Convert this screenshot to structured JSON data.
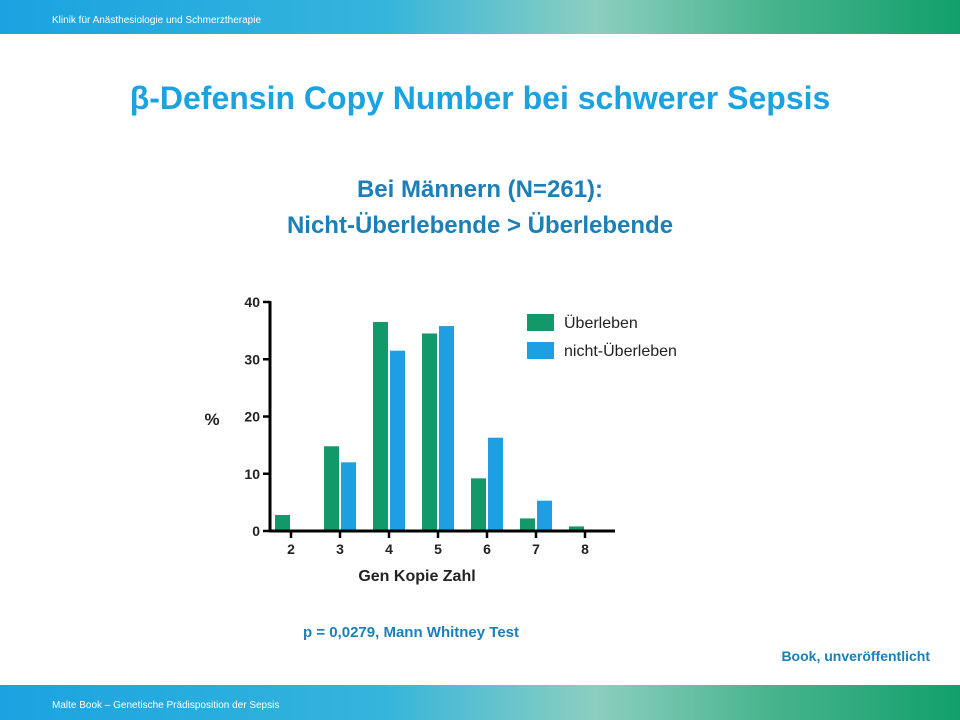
{
  "header": {
    "text": "Klinik für  Anästhesiologie und Schmerztherapie"
  },
  "footer": {
    "text": "Malte Book – Genetische Prädisposition der Sepsis"
  },
  "slide": {
    "title_symbol": "β",
    "title": "-Defensin Copy Number bei schwerer Sepsis",
    "subtitle_line1": "Bei Männern (N=261):",
    "subtitle_line2": "Nicht-Überlebende > Überlebende",
    "pvalue": "p = 0,0279, Mann Whitney Test",
    "source": "Book, unveröffentlicht"
  },
  "colors": {
    "accent": "#1aa3e0",
    "text_blue": "#1b7fb8",
    "series_green": "#13986a",
    "series_blue": "#1e9fe3"
  },
  "chart_data": {
    "type": "bar",
    "categories": [
      "2",
      "3",
      "4",
      "5",
      "6",
      "7",
      "8"
    ],
    "series": [
      {
        "name": "Überleben",
        "values": [
          2.8,
          14.8,
          36.5,
          34.5,
          9.2,
          2.2,
          0.8
        ]
      },
      {
        "name": "nicht-Überleben",
        "values": [
          0,
          12,
          31.5,
          35.8,
          16.3,
          5.3,
          0
        ]
      }
    ],
    "xlabel": "Gen Kopie Zahl",
    "ylabel": "%",
    "ylim": [
      0,
      40
    ],
    "yticks": [
      0,
      10,
      20,
      30,
      40
    ],
    "legend_position": "top-right",
    "grid": false
  }
}
